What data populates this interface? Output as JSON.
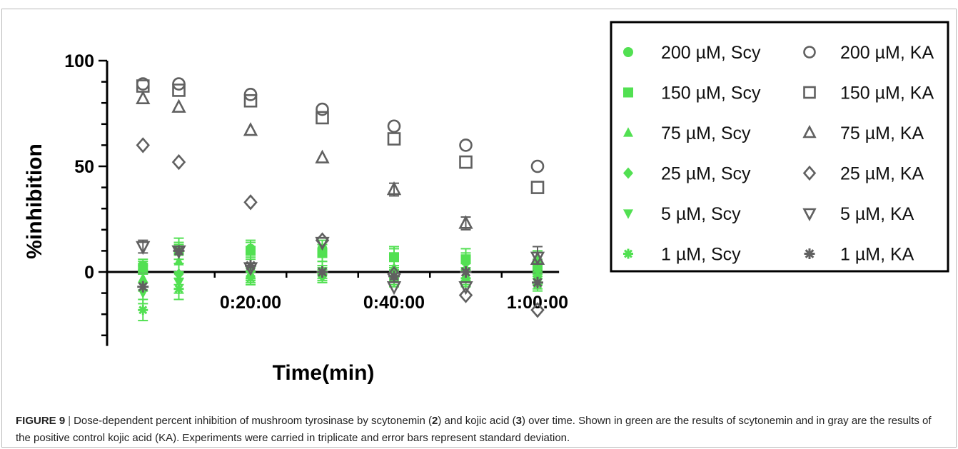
{
  "figure": {
    "label": "FIGURE 9",
    "separator": "|",
    "caption_parts": [
      {
        "text": "Dose-dependent percent inhibition of mushroom tyrosinase by scytonemin (",
        "bold": false
      },
      {
        "text": "2",
        "bold": true
      },
      {
        "text": ") and kojic acid (",
        "bold": false
      },
      {
        "text": "3",
        "bold": true
      },
      {
        "text": ") over time. Shown in green are the results of scytonemin and in gray are the results of the positive control kojic acid (KA). Experiments were carried in triplicate and error bars represent standard deviation.",
        "bold": false
      }
    ]
  },
  "chart_data": {
    "type": "scatter",
    "title": "",
    "xlabel": "Time(min)",
    "ylabel": "%inhibition",
    "x_ticks": [
      "0:20:00",
      "0:40:00",
      "1:00:00"
    ],
    "y_ticks": [
      "100",
      "50",
      "0"
    ],
    "ylim": [
      -35,
      100
    ],
    "xlim_minutes": [
      0,
      63
    ],
    "x_minutes": [
      5,
      10,
      20,
      30,
      40,
      50,
      60
    ],
    "grid": false,
    "legend_position": "right",
    "colors": {
      "scy": "#52e052",
      "ka": "#606060"
    },
    "series": [
      {
        "name": "200 µM, Scy",
        "group": "scy",
        "marker": "circle",
        "values": [
          3,
          10,
          11,
          11,
          7,
          5,
          2
        ],
        "errors": [
          3,
          4,
          4,
          4,
          4,
          4,
          3
        ]
      },
      {
        "name": "150 µM, Scy",
        "group": "scy",
        "marker": "square",
        "values": [
          2,
          10,
          10,
          9,
          7,
          6,
          3
        ],
        "errors": [
          3,
          6,
          4,
          4,
          5,
          5,
          3
        ]
      },
      {
        "name": "75 µM, Scy",
        "group": "scy",
        "marker": "triangle",
        "values": [
          -3,
          5,
          2,
          0,
          2,
          2,
          6
        ],
        "errors": [
          4,
          8,
          7,
          5,
          5,
          5,
          4
        ]
      },
      {
        "name": "25 µM, Scy",
        "group": "scy",
        "marker": "diamond",
        "values": [
          -5,
          -1,
          -2,
          -2,
          -3,
          -3,
          -2
        ],
        "errors": [
          4,
          5,
          4,
          3,
          4,
          4,
          4
        ]
      },
      {
        "name": "5 µM, Scy",
        "group": "scy",
        "marker": "triangle-down",
        "values": [
          -10,
          -5,
          -1,
          0,
          -1,
          -1,
          -5
        ],
        "errors": [
          5,
          5,
          3,
          3,
          3,
          3,
          3
        ]
      },
      {
        "name": "1 µM, Scy",
        "group": "scy",
        "marker": "star",
        "values": [
          -18,
          -8,
          -3,
          -1,
          -3,
          -3,
          -6
        ],
        "errors": [
          5,
          5,
          3,
          3,
          3,
          3,
          3
        ]
      },
      {
        "name": "200 µM, KA",
        "group": "ka",
        "marker": "circle",
        "values": [
          89,
          89,
          84,
          77,
          69,
          60,
          50
        ],
        "errors": [
          0,
          0,
          0,
          0,
          0,
          0,
          0
        ]
      },
      {
        "name": "150 µM, KA",
        "group": "ka",
        "marker": "square",
        "values": [
          88,
          86,
          81,
          73,
          63,
          52,
          40
        ],
        "errors": [
          0,
          0,
          0,
          0,
          0,
          0,
          0
        ]
      },
      {
        "name": "75 µM, KA",
        "group": "ka",
        "marker": "triangle",
        "values": [
          82,
          78,
          67,
          54,
          39,
          23,
          6
        ],
        "errors": [
          0,
          0,
          0,
          0,
          3,
          3,
          0
        ]
      },
      {
        "name": "25 µM, KA",
        "group": "ka",
        "marker": "diamond",
        "values": [
          60,
          52,
          33,
          15,
          -1,
          -11,
          -18
        ],
        "errors": [
          0,
          0,
          0,
          0,
          0,
          0,
          0
        ]
      },
      {
        "name": "5 µM, KA",
        "group": "ka",
        "marker": "triangle-down",
        "values": [
          12,
          10,
          2,
          14,
          -7,
          -7,
          7
        ],
        "errors": [
          3,
          0,
          0,
          0,
          0,
          0,
          5
        ]
      },
      {
        "name": "1 µM, KA",
        "group": "ka",
        "marker": "star",
        "values": [
          -7,
          10,
          3,
          0,
          -2,
          0,
          -5
        ],
        "errors": [
          0,
          0,
          0,
          0,
          0,
          0,
          0
        ]
      }
    ]
  }
}
